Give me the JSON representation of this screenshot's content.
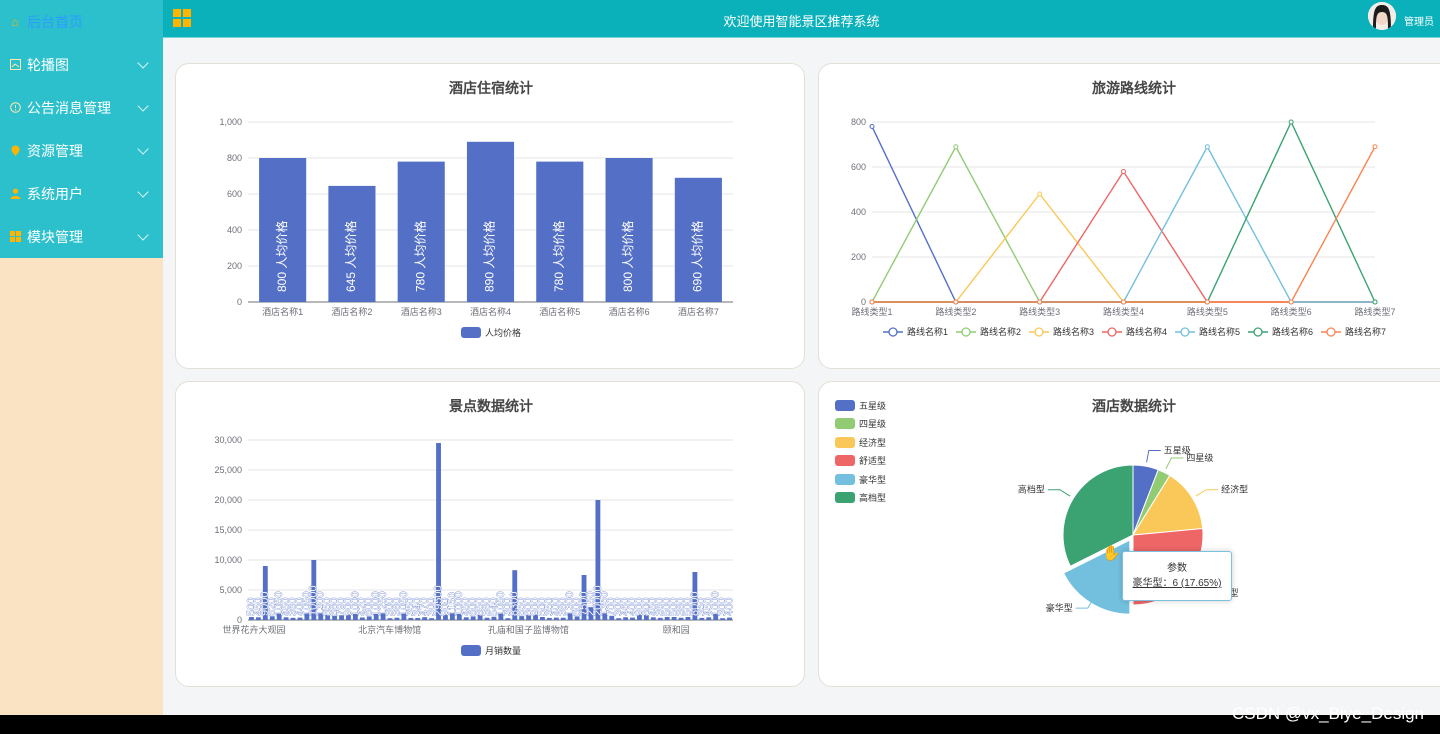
{
  "sidebar": {
    "items": [
      {
        "label": "后台首页",
        "icon": "home-icon",
        "active": true
      },
      {
        "label": "轮播图",
        "icon": "image-icon"
      },
      {
        "label": "公告消息管理",
        "icon": "info-icon"
      },
      {
        "label": "资源管理",
        "icon": "location-icon"
      },
      {
        "label": "系统用户",
        "icon": "user-icon"
      },
      {
        "label": "模块管理",
        "icon": "grid-icon"
      }
    ]
  },
  "header": {
    "title": "欢迎使用智能景区推荐系统",
    "user": "管理员"
  },
  "charts": {
    "hotel_stay": {
      "title": "酒店住宿统计",
      "legend": "人均价格"
    },
    "route": {
      "title": "旅游路线统计"
    },
    "scenic": {
      "title": "景点数据统计",
      "legend": "月销数量"
    },
    "hotel_data": {
      "title": "酒店数据统计"
    }
  },
  "tooltip": {
    "title": "参数",
    "value": "豪华型：6 (17.65%)"
  },
  "watermark": "CSDN @vx_Biye_Design",
  "colors": {
    "accent": "#0bb1ba",
    "bar": "#5470c6"
  },
  "chart_data": [
    {
      "type": "bar",
      "title": "酒店住宿统计",
      "categories": [
        "酒店名称1",
        "酒店名称2",
        "酒店名称3",
        "酒店名称4",
        "酒店名称5",
        "酒店名称6",
        "酒店名称7"
      ],
      "series": [
        {
          "name": "人均价格",
          "values": [
            800,
            645,
            780,
            890,
            780,
            800,
            690
          ]
        }
      ],
      "data_label_prefix": "人均价格",
      "ylim": [
        0,
        1000
      ],
      "yticks": [
        "0",
        "200",
        "400",
        "600",
        "800",
        "1,000"
      ],
      "legend": "bottom"
    },
    {
      "type": "line",
      "title": "旅游路线统计",
      "categories": [
        "路线类型1",
        "路线类型2",
        "路线类型3",
        "路线类型4",
        "路线类型5",
        "路线类型6",
        "路线类型7"
      ],
      "series": [
        {
          "name": "路线名称1",
          "color": "#5470c6",
          "values": [
            780,
            0,
            0,
            0,
            0,
            0,
            0
          ]
        },
        {
          "name": "路线名称2",
          "color": "#91cc75",
          "values": [
            0,
            690,
            0,
            0,
            0,
            0,
            0
          ]
        },
        {
          "name": "路线名称3",
          "color": "#fac858",
          "values": [
            0,
            0,
            480,
            0,
            0,
            0,
            0
          ]
        },
        {
          "name": "路线名称4",
          "color": "#ee6666",
          "values": [
            0,
            0,
            0,
            580,
            0,
            0,
            0
          ]
        },
        {
          "name": "路线名称5",
          "color": "#73c0de",
          "values": [
            0,
            0,
            0,
            0,
            690,
            0,
            0
          ]
        },
        {
          "name": "路线名称6",
          "color": "#3ba272",
          "values": [
            0,
            0,
            0,
            0,
            0,
            800,
            0
          ]
        },
        {
          "name": "路线名称7",
          "color": "#fc8452",
          "values": [
            0,
            0,
            0,
            0,
            0,
            0,
            690
          ]
        }
      ],
      "ylim": [
        0,
        800
      ],
      "yticks": [
        "0",
        "200",
        "400",
        "600",
        "800"
      ],
      "legend": "bottom"
    },
    {
      "type": "bar",
      "title": "景点数据统计",
      "xtick_labels": [
        "世界花卉大观园",
        "北京汽车博物馆",
        "孔庙和国子监博物馆",
        "颐和园"
      ],
      "series": [
        {
          "name": "月销数量",
          "values": [
            500,
            450,
            9000,
            620,
            1050,
            450,
            360,
            400,
            1050,
            10000,
            1300,
            850,
            680,
            790,
            900,
            1000,
            420,
            600,
            1000,
            1250,
            300,
            380,
            1050,
            350,
            340,
            470,
            300,
            29500,
            900,
            1150,
            1000,
            450,
            600,
            850,
            380,
            540,
            1050,
            300,
            8300,
            650,
            800,
            900,
            500,
            350,
            400,
            380,
            1300,
            600,
            7500,
            2150,
            20000,
            1350,
            700,
            300,
            460,
            400,
            900,
            800,
            450,
            360,
            500,
            500,
            380,
            500,
            8000,
            350,
            450,
            1000,
            300,
            400
          ]
        }
      ],
      "ylim": [
        0,
        30000
      ],
      "yticks": [
        "0",
        "5,000",
        "10,000",
        "15,000",
        "20,000",
        "25,000",
        "30,000"
      ],
      "legend": "bottom"
    },
    {
      "type": "pie",
      "title": "酒店数据统计",
      "labels": [
        "五星级",
        "四星级",
        "经济型",
        "舒适型",
        "豪华型",
        "高档型"
      ],
      "values": [
        2,
        1,
        5,
        9,
        6,
        11
      ],
      "colors": [
        "#5470c6",
        "#91cc75",
        "#fac858",
        "#ee6666",
        "#73c0de",
        "#3ba272"
      ],
      "legend": "top-left"
    }
  ]
}
